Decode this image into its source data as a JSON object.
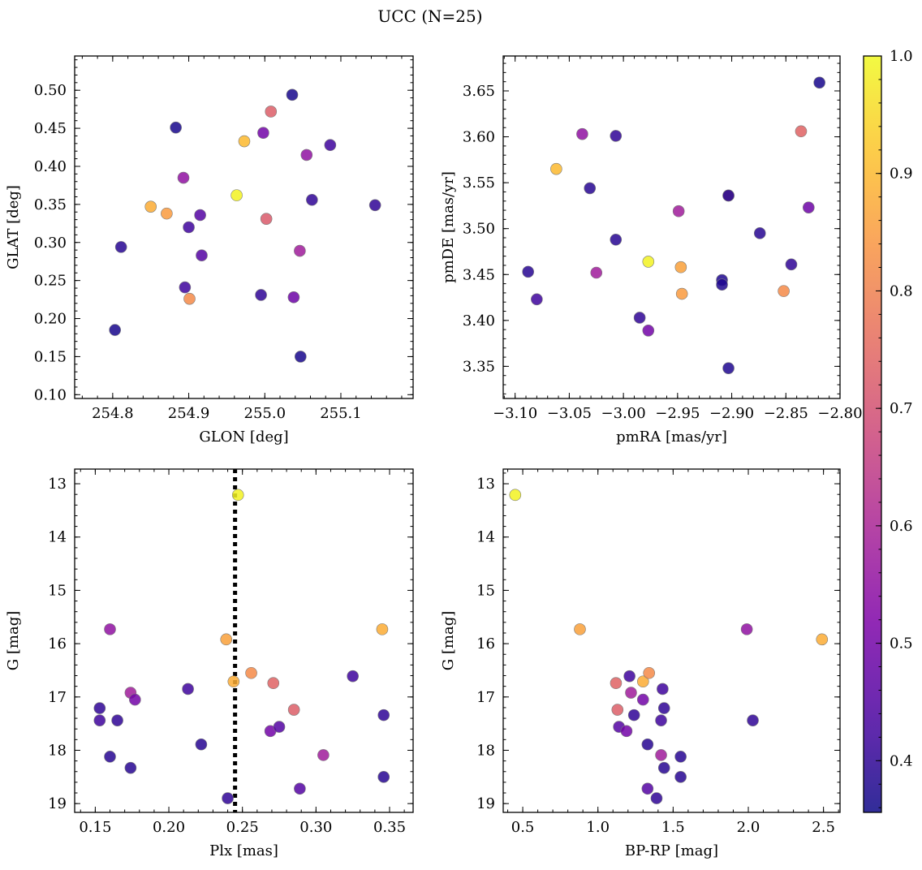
{
  "figure": {
    "title": "UCC (N=25)",
    "colorbar": {
      "vmin": 0.356,
      "vmax": 1.0,
      "ticks": [
        "0.4",
        "0.5",
        "0.6",
        "0.7",
        "0.8",
        "0.9",
        "1.0"
      ],
      "tick_values": [
        0.4,
        0.5,
        0.6,
        0.7,
        0.8,
        0.9,
        1.0
      ],
      "colormap": "plasma"
    }
  },
  "chart_data": [
    {
      "type": "scatter",
      "xlabel": "GLON [deg]",
      "ylabel": "GLAT [deg]",
      "xlim": [
        254.75,
        255.195
      ],
      "ylim": [
        0.095,
        0.545
      ],
      "x_ticks": [
        254.8,
        254.9,
        255.0,
        255.1
      ],
      "x_tick_labels": [
        "254.8",
        "254.9",
        "255.0",
        "255.1"
      ],
      "y_ticks": [
        0.1,
        0.15,
        0.2,
        0.25,
        0.3,
        0.35,
        0.4,
        0.45,
        0.5
      ],
      "y_tick_labels": [
        "0.10",
        "0.15",
        "0.20",
        "0.25",
        "0.30",
        "0.35",
        "0.40",
        "0.45",
        "0.50"
      ],
      "y_inverted": false,
      "points": [
        {
          "x": 254.803,
          "y": 0.185,
          "c": 0.37
        },
        {
          "x": 254.811,
          "y": 0.294,
          "c": 0.39
        },
        {
          "x": 254.85,
          "y": 0.347,
          "c": 0.88
        },
        {
          "x": 254.871,
          "y": 0.338,
          "c": 0.85
        },
        {
          "x": 254.883,
          "y": 0.451,
          "c": 0.37
        },
        {
          "x": 254.893,
          "y": 0.385,
          "c": 0.55
        },
        {
          "x": 254.895,
          "y": 0.241,
          "c": 0.42
        },
        {
          "x": 254.9,
          "y": 0.32,
          "c": 0.42
        },
        {
          "x": 254.901,
          "y": 0.226,
          "c": 0.82
        },
        {
          "x": 254.915,
          "y": 0.336,
          "c": 0.45
        },
        {
          "x": 254.917,
          "y": 0.283,
          "c": 0.45
        },
        {
          "x": 254.963,
          "y": 0.362,
          "c": 0.99
        },
        {
          "x": 254.973,
          "y": 0.433,
          "c": 0.9
        },
        {
          "x": 254.995,
          "y": 0.231,
          "c": 0.4
        },
        {
          "x": 254.998,
          "y": 0.444,
          "c": 0.5
        },
        {
          "x": 255.002,
          "y": 0.331,
          "c": 0.72
        },
        {
          "x": 255.008,
          "y": 0.472,
          "c": 0.73
        },
        {
          "x": 255.036,
          "y": 0.494,
          "c": 0.37
        },
        {
          "x": 255.038,
          "y": 0.228,
          "c": 0.49
        },
        {
          "x": 255.046,
          "y": 0.289,
          "c": 0.58
        },
        {
          "x": 255.047,
          "y": 0.15,
          "c": 0.37
        },
        {
          "x": 255.055,
          "y": 0.415,
          "c": 0.55
        },
        {
          "x": 255.062,
          "y": 0.356,
          "c": 0.4
        },
        {
          "x": 255.086,
          "y": 0.428,
          "c": 0.42
        },
        {
          "x": 255.145,
          "y": 0.349,
          "c": 0.4
        }
      ]
    },
    {
      "type": "scatter",
      "xlabel": "pmRA [mas/yr]",
      "ylabel": "pmDE [mas/yr]",
      "xlim": [
        -3.111,
        -2.8
      ],
      "ylim": [
        3.315,
        3.688
      ],
      "x_ticks": [
        -3.1,
        -3.05,
        -3.0,
        -2.95,
        -2.9,
        -2.85,
        -2.8
      ],
      "x_tick_labels": [
        "−3.10",
        "−3.05",
        "−3.00",
        "−2.95",
        "−2.90",
        "−2.85",
        "−2.80"
      ],
      "y_ticks": [
        3.35,
        3.4,
        3.45,
        3.5,
        3.55,
        3.6,
        3.65
      ],
      "y_tick_labels": [
        "3.35",
        "3.40",
        "3.45",
        "3.50",
        "3.55",
        "3.60",
        "3.65"
      ],
      "y_inverted": false,
      "points": [
        {
          "x": -3.088,
          "y": 3.453,
          "c": 0.39
        },
        {
          "x": -3.08,
          "y": 3.423,
          "c": 0.42
        },
        {
          "x": -3.062,
          "y": 3.565,
          "c": 0.9
        },
        {
          "x": -3.038,
          "y": 3.603,
          "c": 0.55
        },
        {
          "x": -3.031,
          "y": 3.544,
          "c": 0.39
        },
        {
          "x": -3.025,
          "y": 3.452,
          "c": 0.58
        },
        {
          "x": -3.007,
          "y": 3.601,
          "c": 0.4
        },
        {
          "x": -3.007,
          "y": 3.488,
          "c": 0.39
        },
        {
          "x": -2.985,
          "y": 3.403,
          "c": 0.4
        },
        {
          "x": -2.977,
          "y": 3.464,
          "c": 0.99
        },
        {
          "x": -2.977,
          "y": 3.389,
          "c": 0.5
        },
        {
          "x": -2.949,
          "y": 3.519,
          "c": 0.58
        },
        {
          "x": -2.947,
          "y": 3.458,
          "c": 0.86
        },
        {
          "x": -2.946,
          "y": 3.429,
          "c": 0.85
        },
        {
          "x": -2.909,
          "y": 3.444,
          "c": 0.38
        },
        {
          "x": -2.909,
          "y": 3.439,
          "c": 0.38
        },
        {
          "x": -2.903,
          "y": 3.536,
          "c": 0.73
        },
        {
          "x": -2.903,
          "y": 3.536,
          "c": 0.38
        },
        {
          "x": -2.903,
          "y": 3.348,
          "c": 0.38
        },
        {
          "x": -2.874,
          "y": 3.495,
          "c": 0.39
        },
        {
          "x": -2.852,
          "y": 3.432,
          "c": 0.82
        },
        {
          "x": -2.845,
          "y": 3.461,
          "c": 0.4
        },
        {
          "x": -2.836,
          "y": 3.606,
          "c": 0.74
        },
        {
          "x": -2.829,
          "y": 3.523,
          "c": 0.49
        },
        {
          "x": -2.819,
          "y": 3.659,
          "c": 0.37
        }
      ]
    },
    {
      "type": "scatter",
      "xlabel": "Plx [mas]",
      "ylabel": "G [mag]",
      "xlim": [
        0.136,
        0.366
      ],
      "ylim": [
        12.725,
        19.165
      ],
      "x_ticks": [
        0.15,
        0.2,
        0.25,
        0.3,
        0.35
      ],
      "x_tick_labels": [
        "0.15",
        "0.20",
        "0.25",
        "0.30",
        "0.35"
      ],
      "y_ticks": [
        13,
        14,
        15,
        16,
        17,
        18,
        19
      ],
      "y_tick_labels": [
        "13",
        "14",
        "15",
        "16",
        "17",
        "18",
        "19"
      ],
      "y_inverted": true,
      "vline": {
        "x": 0.245,
        "style": "dotted"
      },
      "points": [
        {
          "x": 0.153,
          "y": 17.21,
          "c": 0.4
        },
        {
          "x": 0.153,
          "y": 17.44,
          "c": 0.42
        },
        {
          "x": 0.16,
          "y": 15.73,
          "c": 0.55
        },
        {
          "x": 0.16,
          "y": 18.12,
          "c": 0.39
        },
        {
          "x": 0.165,
          "y": 17.44,
          "c": 0.4
        },
        {
          "x": 0.174,
          "y": 16.92,
          "c": 0.58
        },
        {
          "x": 0.174,
          "y": 18.33,
          "c": 0.39
        },
        {
          "x": 0.177,
          "y": 17.05,
          "c": 0.5
        },
        {
          "x": 0.213,
          "y": 16.85,
          "c": 0.42
        },
        {
          "x": 0.222,
          "y": 17.89,
          "c": 0.39
        },
        {
          "x": 0.239,
          "y": 15.92,
          "c": 0.86
        },
        {
          "x": 0.24,
          "y": 18.9,
          "c": 0.4
        },
        {
          "x": 0.244,
          "y": 16.71,
          "c": 0.88
        },
        {
          "x": 0.247,
          "y": 13.21,
          "c": 0.99
        },
        {
          "x": 0.256,
          "y": 16.55,
          "c": 0.82
        },
        {
          "x": 0.269,
          "y": 17.64,
          "c": 0.5
        },
        {
          "x": 0.271,
          "y": 16.74,
          "c": 0.74
        },
        {
          "x": 0.275,
          "y": 17.56,
          "c": 0.45
        },
        {
          "x": 0.285,
          "y": 17.24,
          "c": 0.73
        },
        {
          "x": 0.289,
          "y": 18.72,
          "c": 0.45
        },
        {
          "x": 0.305,
          "y": 18.09,
          "c": 0.58
        },
        {
          "x": 0.325,
          "y": 16.61,
          "c": 0.42
        },
        {
          "x": 0.345,
          "y": 15.73,
          "c": 0.88
        },
        {
          "x": 0.346,
          "y": 17.34,
          "c": 0.4
        },
        {
          "x": 0.346,
          "y": 18.5,
          "c": 0.39
        }
      ]
    },
    {
      "type": "scatter",
      "xlabel": "BP-RP [mag]",
      "ylabel": "G [mag]",
      "xlim": [
        0.37,
        2.61
      ],
      "ylim": [
        12.725,
        19.165
      ],
      "x_ticks": [
        0.5,
        1.0,
        1.5,
        2.0,
        2.5
      ],
      "x_tick_labels": [
        "0.5",
        "1.0",
        "1.5",
        "2.0",
        "2.5"
      ],
      "y_ticks": [
        13,
        14,
        15,
        16,
        17,
        18,
        19
      ],
      "y_tick_labels": [
        "13",
        "14",
        "15",
        "16",
        "17",
        "18",
        "19"
      ],
      "y_inverted": true,
      "points": [
        {
          "x": 0.45,
          "y": 13.21,
          "c": 0.99
        },
        {
          "x": 0.88,
          "y": 15.73,
          "c": 0.86
        },
        {
          "x": 1.12,
          "y": 16.74,
          "c": 0.74
        },
        {
          "x": 1.13,
          "y": 17.24,
          "c": 0.73
        },
        {
          "x": 1.14,
          "y": 17.56,
          "c": 0.45
        },
        {
          "x": 1.19,
          "y": 17.64,
          "c": 0.5
        },
        {
          "x": 1.21,
          "y": 16.61,
          "c": 0.42
        },
        {
          "x": 1.22,
          "y": 16.92,
          "c": 0.58
        },
        {
          "x": 1.24,
          "y": 17.34,
          "c": 0.4
        },
        {
          "x": 1.3,
          "y": 17.05,
          "c": 0.5
        },
        {
          "x": 1.3,
          "y": 16.71,
          "c": 0.88
        },
        {
          "x": 1.33,
          "y": 17.89,
          "c": 0.39
        },
        {
          "x": 1.33,
          "y": 18.72,
          "c": 0.45
        },
        {
          "x": 1.34,
          "y": 16.55,
          "c": 0.82
        },
        {
          "x": 1.39,
          "y": 18.9,
          "c": 0.4
        },
        {
          "x": 1.42,
          "y": 17.44,
          "c": 0.42
        },
        {
          "x": 1.42,
          "y": 18.09,
          "c": 0.58
        },
        {
          "x": 1.43,
          "y": 16.85,
          "c": 0.42
        },
        {
          "x": 1.44,
          "y": 17.21,
          "c": 0.4
        },
        {
          "x": 1.44,
          "y": 18.33,
          "c": 0.39
        },
        {
          "x": 1.55,
          "y": 18.12,
          "c": 0.39
        },
        {
          "x": 1.55,
          "y": 18.5,
          "c": 0.39
        },
        {
          "x": 1.99,
          "y": 15.73,
          "c": 0.55
        },
        {
          "x": 2.03,
          "y": 17.44,
          "c": 0.4
        },
        {
          "x": 2.49,
          "y": 15.92,
          "c": 0.88
        }
      ]
    }
  ]
}
